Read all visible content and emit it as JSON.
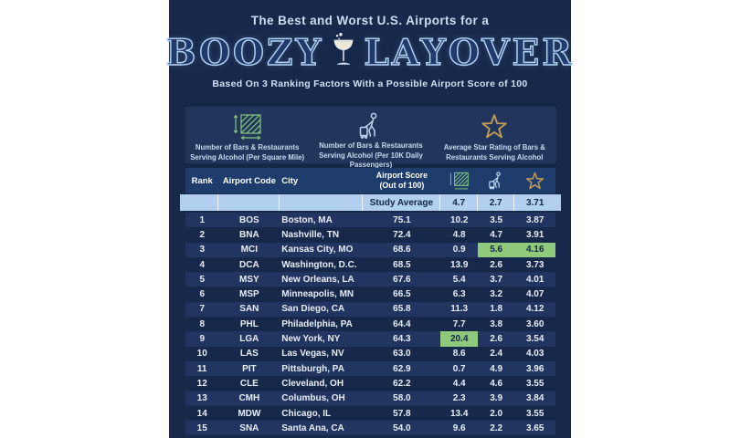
{
  "header": {
    "title_line": "The Best and Worst U.S. Airports for a",
    "big_title_left": "BOOZY",
    "big_title_right": "LAYOVER",
    "subtitle": "Based On 3 Ranking Factors With a Possible Airport Score of 100"
  },
  "legend": {
    "items": [
      {
        "icon": "area-density-icon",
        "label": "Number of Bars & Restaurants Serving Alcohol (Per Square Mile)"
      },
      {
        "icon": "traveler-icon",
        "label": "Number of Bars & Restaurants Serving Alcohol (Per 10K Daily Passengers)"
      },
      {
        "icon": "star-icon",
        "label": "Average Star Rating of Bars & Restaurants Serving Alcohol"
      }
    ]
  },
  "table": {
    "columns": {
      "rank": "Rank",
      "code": "Airport Code",
      "city": "City",
      "score_line1": "Airport Score",
      "score_line2": "(Out of 100)"
    },
    "study_average": {
      "label": "Study Average",
      "values": [
        "4.7",
        "2.7",
        "3.71"
      ]
    },
    "rows": [
      {
        "rank": "1",
        "code": "BOS",
        "city": "Boston, MA",
        "score": "75.1",
        "m1": "10.2",
        "m2": "3.5",
        "m3": "3.87",
        "highlight": []
      },
      {
        "rank": "2",
        "code": "BNA",
        "city": "Nashville, TN",
        "score": "72.4",
        "m1": "4.8",
        "m2": "4.7",
        "m3": "3.91",
        "highlight": []
      },
      {
        "rank": "3",
        "code": "MCI",
        "city": "Kansas City, MO",
        "score": "68.6",
        "m1": "0.9",
        "m2": "5.6",
        "m3": "4.16",
        "highlight": [
          "m2",
          "m3"
        ]
      },
      {
        "rank": "4",
        "code": "DCA",
        "city": "Washington, D.C.",
        "score": "68.5",
        "m1": "13.9",
        "m2": "2.6",
        "m3": "3.73",
        "highlight": []
      },
      {
        "rank": "5",
        "code": "MSY",
        "city": "New Orleans, LA",
        "score": "67.6",
        "m1": "5.4",
        "m2": "3.7",
        "m3": "4.01",
        "highlight": []
      },
      {
        "rank": "6",
        "code": "MSP",
        "city": "Minneapolis, MN",
        "score": "66.5",
        "m1": "6.3",
        "m2": "3.2",
        "m3": "4.07",
        "highlight": []
      },
      {
        "rank": "7",
        "code": "SAN",
        "city": "San Diego, CA",
        "score": "65.8",
        "m1": "11.3",
        "m2": "1.8",
        "m3": "4.12",
        "highlight": []
      },
      {
        "rank": "8",
        "code": "PHL",
        "city": "Philadelphia, PA",
        "score": "64.4",
        "m1": "7.7",
        "m2": "3.8",
        "m3": "3.60",
        "highlight": []
      },
      {
        "rank": "9",
        "code": "LGA",
        "city": "New York, NY",
        "score": "64.3",
        "m1": "20.4",
        "m2": "2.6",
        "m3": "3.54",
        "highlight": [
          "m1"
        ]
      },
      {
        "rank": "10",
        "code": "LAS",
        "city": "Las Vegas, NV",
        "score": "63.0",
        "m1": "8.6",
        "m2": "2.4",
        "m3": "4.03",
        "highlight": []
      },
      {
        "rank": "11",
        "code": "PIT",
        "city": "Pittsburgh, PA",
        "score": "62.9",
        "m1": "0.7",
        "m2": "4.9",
        "m3": "3.96",
        "highlight": []
      },
      {
        "rank": "12",
        "code": "CLE",
        "city": "Cleveland, OH",
        "score": "62.2",
        "m1": "4.4",
        "m2": "4.6",
        "m3": "3.55",
        "highlight": []
      },
      {
        "rank": "13",
        "code": "CMH",
        "city": "Columbus, OH",
        "score": "58.0",
        "m1": "2.3",
        "m2": "3.9",
        "m3": "3.84",
        "highlight": []
      },
      {
        "rank": "14",
        "code": "MDW",
        "city": "Chicago, IL",
        "score": "57.8",
        "m1": "13.4",
        "m2": "2.0",
        "m3": "3.55",
        "highlight": []
      },
      {
        "rank": "15",
        "code": "SNA",
        "city": "Santa Ana, CA",
        "score": "54.0",
        "m1": "9.6",
        "m2": "2.2",
        "m3": "3.65",
        "highlight": []
      }
    ]
  },
  "colors": {
    "canvas_white": "#ffffff",
    "background_navy": "#17294b",
    "panel_navy": "#22365c",
    "table_header_navy": "#1e3d6d",
    "row_alt_navy": "#213560",
    "study_average_blue": "#b3cfef",
    "highlight_green": "#8fc97c",
    "icon_green": "#82c77e",
    "icon_light_blue": "#bcd6f2",
    "star_gold": "#c59c54",
    "title_text": "#c8dcf3"
  },
  "chart_data": {
    "type": "table",
    "title": "The Best and Worst U.S. Airports for a Boozy Layover",
    "subtitle": "Based On 3 Ranking Factors With a Possible Airport Score of 100",
    "columns": [
      "Rank",
      "Airport Code",
      "City",
      "Airport Score (Out of 100)",
      "Bars & Restaurants Serving Alcohol Per Square Mile",
      "Bars & Restaurants Serving Alcohol Per 10K Daily Passengers",
      "Average Star Rating of Bars & Restaurants Serving Alcohol"
    ],
    "study_average": {
      "per_sq_mile": 4.7,
      "per_10k_passengers": 2.7,
      "star_rating": 3.71
    },
    "rows": [
      [
        1,
        "BOS",
        "Boston, MA",
        75.1,
        10.2,
        3.5,
        3.87
      ],
      [
        2,
        "BNA",
        "Nashville, TN",
        72.4,
        4.8,
        4.7,
        3.91
      ],
      [
        3,
        "MCI",
        "Kansas City, MO",
        68.6,
        0.9,
        5.6,
        4.16
      ],
      [
        4,
        "DCA",
        "Washington, D.C.",
        68.5,
        13.9,
        2.6,
        3.73
      ],
      [
        5,
        "MSY",
        "New Orleans, LA",
        67.6,
        5.4,
        3.7,
        4.01
      ],
      [
        6,
        "MSP",
        "Minneapolis, MN",
        66.5,
        6.3,
        3.2,
        4.07
      ],
      [
        7,
        "SAN",
        "San Diego, CA",
        65.8,
        11.3,
        1.8,
        4.12
      ],
      [
        8,
        "PHL",
        "Philadelphia, PA",
        64.4,
        7.7,
        3.8,
        3.6
      ],
      [
        9,
        "LGA",
        "New York, NY",
        64.3,
        20.4,
        2.6,
        3.54
      ],
      [
        10,
        "LAS",
        "Las Vegas, NV",
        63.0,
        8.6,
        2.4,
        4.03
      ],
      [
        11,
        "PIT",
        "Pittsburgh, PA",
        62.9,
        0.7,
        4.9,
        3.96
      ],
      [
        12,
        "CLE",
        "Cleveland, OH",
        62.2,
        4.4,
        4.6,
        3.55
      ],
      [
        13,
        "CMH",
        "Columbus, OH",
        58.0,
        2.3,
        3.9,
        3.84
      ],
      [
        14,
        "MDW",
        "Chicago, IL",
        57.8,
        13.4,
        2.0,
        3.55
      ],
      [
        15,
        "SNA",
        "Santa Ana, CA",
        54.0,
        9.6,
        2.2,
        3.65
      ]
    ],
    "highlighted_cells": [
      {
        "airport": "MCI",
        "columns": [
          "per_10k_passengers",
          "star_rating"
        ]
      },
      {
        "airport": "LGA",
        "columns": [
          "per_sq_mile"
        ]
      }
    ],
    "legend_position": "top",
    "grid": false
  }
}
